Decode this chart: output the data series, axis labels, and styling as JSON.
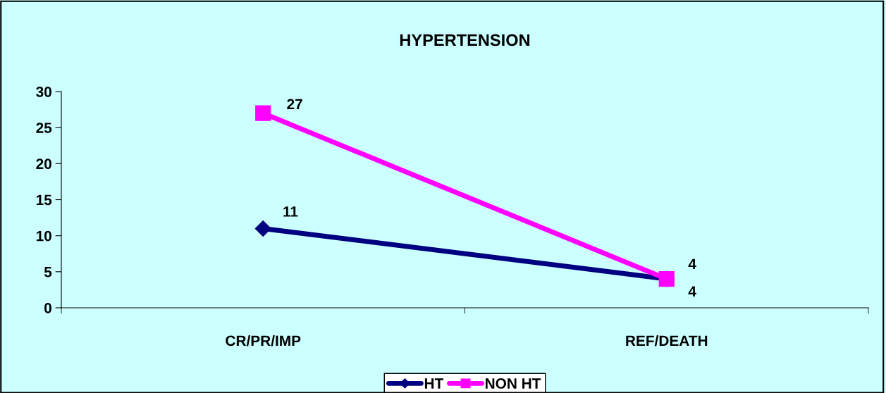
{
  "chart_data": {
    "type": "line",
    "title": "HYPERTENSION",
    "categories": [
      "CR/PR/IMP",
      "REF/DEATH"
    ],
    "series": [
      {
        "name": "HT",
        "color": "#000080",
        "marker": "diamond",
        "values": [
          11,
          4
        ]
      },
      {
        "name": "NON HT",
        "color": "#ff00ff",
        "marker": "square",
        "values": [
          27,
          4
        ]
      }
    ],
    "ylim": [
      0,
      30
    ],
    "yticks": [
      0,
      5,
      10,
      15,
      20,
      25,
      30
    ],
    "data_labels": true,
    "legend": "bottom",
    "grid": false,
    "line_style": "solid"
  }
}
